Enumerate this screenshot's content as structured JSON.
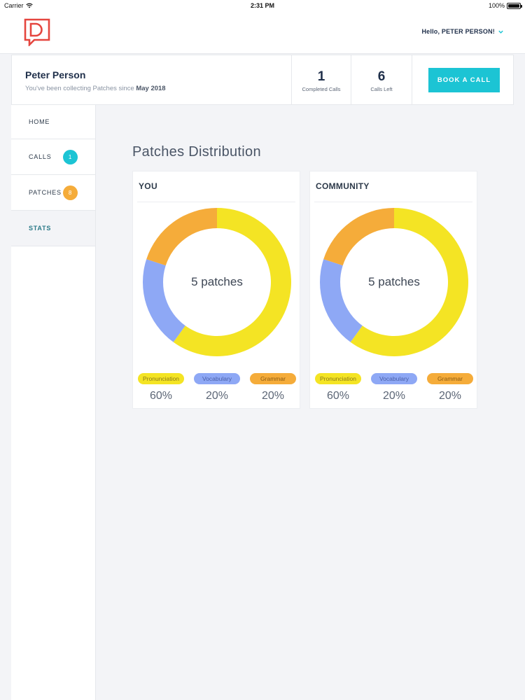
{
  "status_bar": {
    "carrier": "Carrier",
    "time": "2:31 PM",
    "battery": "100%"
  },
  "header": {
    "greeting": "Hello, PETER PERSON!"
  },
  "profile": {
    "name": "Peter Person",
    "since_prefix": "You've been collecting Patches since ",
    "since_date": "May 2018"
  },
  "stats": {
    "completed_calls": "1",
    "completed_calls_label": "Completed Calls",
    "calls_left": "6",
    "calls_left_label": "Calls Left"
  },
  "book_button": "BOOK A CALL",
  "sidebar": {
    "items": [
      {
        "label": "HOME"
      },
      {
        "label": "CALLS",
        "badge": "1",
        "badge_color": "#1cc4d4"
      },
      {
        "label": "PATCHES",
        "badge": "8",
        "badge_color": "#f5ac3a"
      },
      {
        "label": "STATS",
        "active": true
      }
    ]
  },
  "main": {
    "title": "Patches Distribution"
  },
  "colors": {
    "accent": "#1cc4d4",
    "pronunciation": "#f4e424",
    "vocabulary": "#8ea8f5",
    "grammar": "#f5ac3a"
  },
  "chart_data": [
    {
      "type": "pie",
      "title": "YOU",
      "center_label": "5 patches",
      "categories": [
        "Pronunciation",
        "Vocabulary",
        "Grammar"
      ],
      "values": [
        60,
        20,
        20
      ],
      "value_labels": [
        "60%",
        "20%",
        "20%"
      ],
      "colors": [
        "#f4e424",
        "#8ea8f5",
        "#f5ac3a"
      ]
    },
    {
      "type": "pie",
      "title": "COMMUNITY",
      "center_label": "5 patches",
      "categories": [
        "Pronunciation",
        "Vocabulary",
        "Grammar"
      ],
      "values": [
        60,
        20,
        20
      ],
      "value_labels": [
        "60%",
        "20%",
        "20%"
      ],
      "colors": [
        "#f4e424",
        "#8ea8f5",
        "#f5ac3a"
      ]
    }
  ]
}
